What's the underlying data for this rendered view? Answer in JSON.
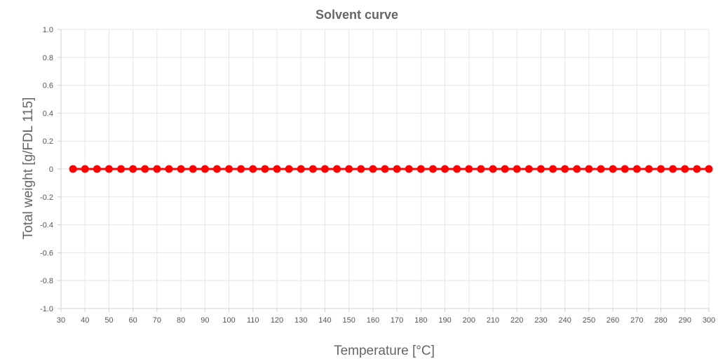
{
  "chart_data": {
    "type": "line",
    "title": "Solvent curve",
    "xlabel": "Temperature [°C]",
    "ylabel": "Total weight [g/FDL 115]",
    "xlim": [
      30,
      300
    ],
    "ylim": [
      -1.0,
      1.0
    ],
    "x_ticks": [
      "30",
      "40",
      "50",
      "60",
      "70",
      "80",
      "90",
      "100",
      "110",
      "120",
      "130",
      "140",
      "150",
      "160",
      "170",
      "180",
      "190",
      "200",
      "210",
      "220",
      "230",
      "240",
      "250",
      "260",
      "270",
      "280",
      "290",
      "300"
    ],
    "y_ticks": [
      "1.0",
      "0.8",
      "0.6",
      "0.4",
      "0.2",
      "0",
      "-0.2",
      "-0.4",
      "-0.6",
      "-0.8",
      "-1.0"
    ],
    "grid": true,
    "series": [
      {
        "color": "#ff0000",
        "x": [
          35,
          40,
          45,
          50,
          55,
          60,
          65,
          70,
          75,
          80,
          85,
          90,
          95,
          100,
          105,
          110,
          115,
          120,
          125,
          130,
          135,
          140,
          145,
          150,
          155,
          160,
          165,
          170,
          175,
          180,
          185,
          190,
          195,
          200,
          205,
          210,
          215,
          220,
          225,
          230,
          235,
          240,
          245,
          250,
          255,
          260,
          265,
          270,
          275,
          280,
          285,
          290,
          295,
          300
        ],
        "y": [
          0,
          0,
          0,
          0,
          0,
          0,
          0,
          0,
          0,
          0,
          0,
          0,
          0,
          0,
          0,
          0,
          0,
          0,
          0,
          0,
          0,
          0,
          0,
          0,
          0,
          0,
          0,
          0,
          0,
          0,
          0,
          0,
          0,
          0,
          0,
          0,
          0,
          0,
          0,
          0,
          0,
          0,
          0,
          0,
          0,
          0,
          0,
          0,
          0,
          0,
          0,
          0,
          0,
          0
        ]
      }
    ]
  }
}
